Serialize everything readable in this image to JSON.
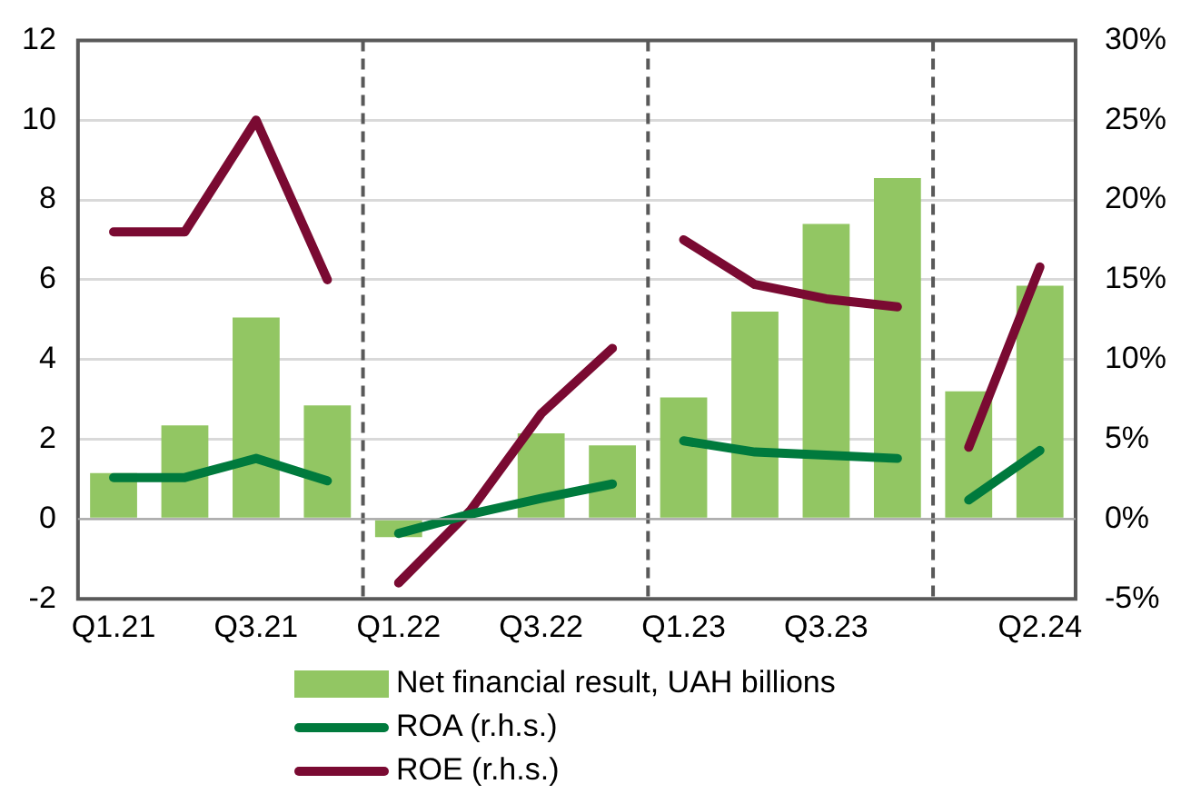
{
  "chart_data": {
    "type": "bar",
    "categories": [
      "Q1.21",
      null,
      "Q3.21",
      null,
      "Q1.22",
      null,
      "Q3.22",
      null,
      "Q1.23",
      null,
      "Q3.23",
      null,
      null,
      "Q2.24"
    ],
    "series": [
      {
        "name": "Net financial result, UAH billions",
        "color": "#92c663",
        "values": [
          1.15,
          2.35,
          5.05,
          2.85,
          -0.45,
          null,
          2.15,
          1.85,
          3.05,
          5.2,
          7.4,
          8.55,
          3.2,
          5.85
        ]
      },
      {
        "name": "ROA (r.h.s.)",
        "type": "line",
        "axis": "y2",
        "color": "#007a3d",
        "values": [
          2.6,
          2.6,
          3.8,
          2.4,
          -0.9,
          0.3,
          1.3,
          2.2,
          4.9,
          4.2,
          4.0,
          3.8,
          1.2,
          4.3
        ]
      },
      {
        "name": "ROE (r.h.s.)",
        "type": "line",
        "axis": "y2",
        "color": "#7a0a32",
        "values": [
          18.0,
          18.0,
          25.0,
          15.0,
          -4.0,
          0.5,
          6.6,
          10.7,
          17.5,
          14.7,
          13.8,
          13.3,
          4.5,
          15.8
        ]
      }
    ],
    "ylim": [
      -2,
      12
    ],
    "yticks": [
      -2,
      0,
      2,
      4,
      6,
      8,
      10,
      12
    ],
    "y2lim": [
      -5,
      30
    ],
    "y2ticks": [
      {
        "value": -5,
        "label": "-5%"
      },
      {
        "value": 0,
        "label": "0%"
      },
      {
        "value": 5,
        "label": "5%"
      },
      {
        "value": 10,
        "label": "10%"
      },
      {
        "value": 15,
        "label": "15%"
      },
      {
        "value": 20,
        "label": "20%"
      },
      {
        "value": 25,
        "label": "25%"
      },
      {
        "value": 30,
        "label": "30%"
      }
    ],
    "grid": "y",
    "legend": "bottom",
    "marker": "none",
    "line_style": "solid"
  }
}
